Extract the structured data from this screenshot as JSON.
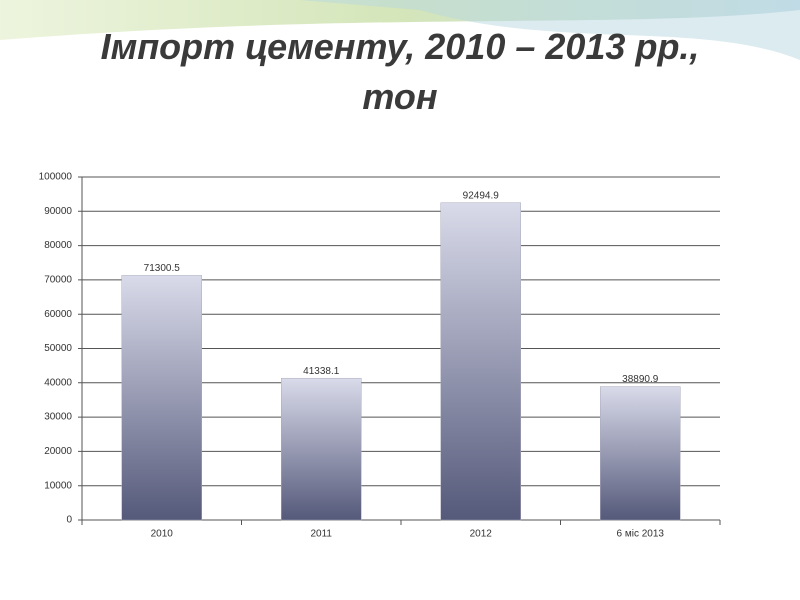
{
  "chart_data": {
    "type": "bar",
    "title": "Імпорт цементу, 2010 – 2013 рр., тон",
    "categories": [
      "2010",
      "2011",
      "2012",
      "6 міс 2013"
    ],
    "values": [
      71300.5,
      41338.1,
      92494.9,
      38890.9
    ],
    "ylim": [
      0,
      100000
    ],
    "yticks": [
      0,
      10000,
      20000,
      30000,
      40000,
      50000,
      60000,
      70000,
      80000,
      90000,
      100000
    ],
    "grid": true
  }
}
